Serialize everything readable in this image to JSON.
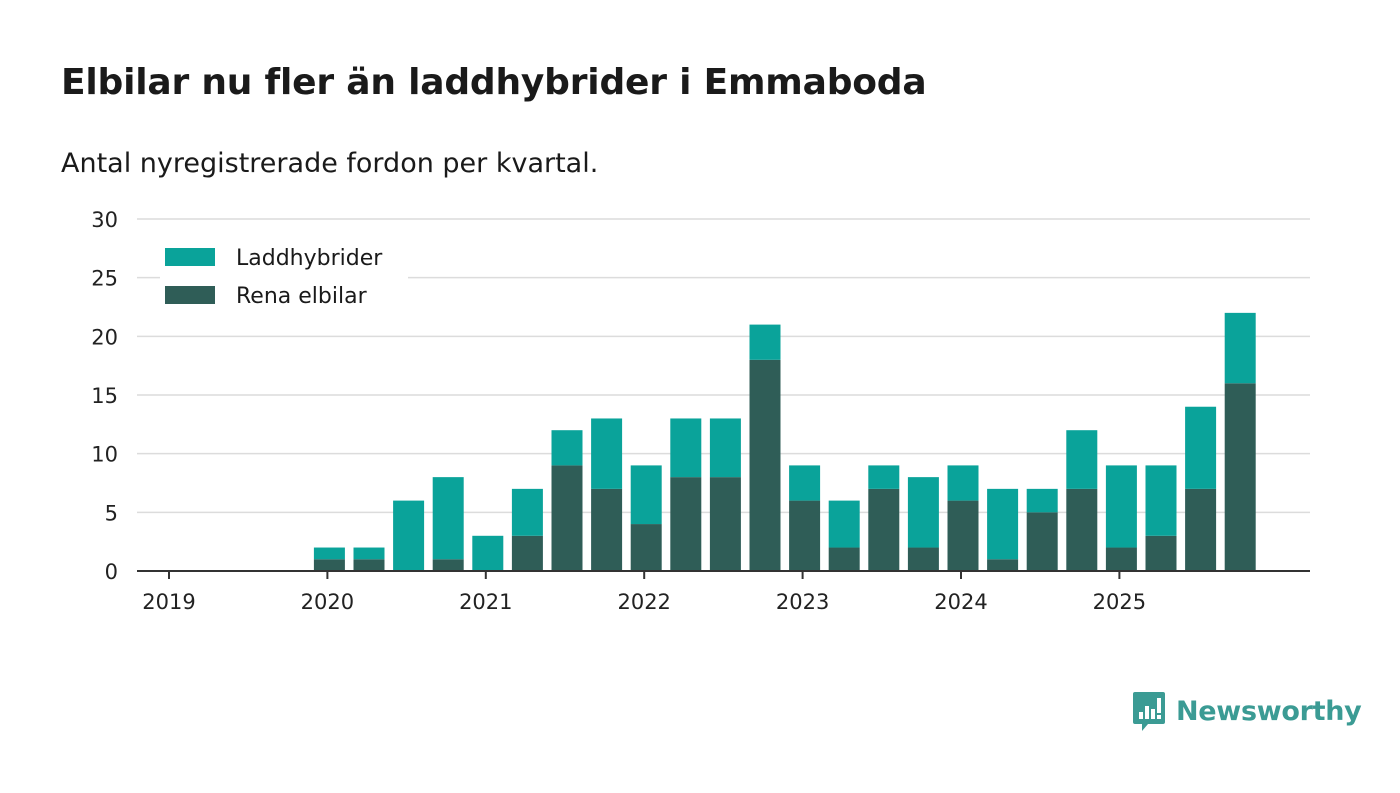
{
  "title": "Elbilar nu fler än laddhybrider i Emmaboda",
  "subtitle": "Antal nyregistrerade fordon per kvartal.",
  "brand": {
    "name": "Newsworthy",
    "color": "#3b9b94",
    "icon": "newsworthy-logo-icon"
  },
  "colors": {
    "laddhybrider": "#0aa39a",
    "rena_elbilar": "#2f5d57",
    "grid": "#dcdcdc",
    "axis": "#333333"
  },
  "chart_data": {
    "type": "bar",
    "stacked": true,
    "title": "Elbilar nu fler än laddhybrider i Emmaboda",
    "subtitle": "Antal nyregistrerade fordon per kvartal.",
    "xlabel": "",
    "ylabel": "",
    "ylim": [
      0,
      30
    ],
    "yticks": [
      0,
      5,
      10,
      15,
      20,
      25,
      30
    ],
    "xticks": [
      "2019",
      "2020",
      "2021",
      "2022",
      "2023",
      "2024",
      "2025"
    ],
    "grid": true,
    "legend_position": "top-left",
    "categories": [
      "2019 Q1",
      "2019 Q2",
      "2019 Q3",
      "2019 Q4",
      "2020 Q1",
      "2020 Q2",
      "2020 Q3",
      "2020 Q4",
      "2021 Q1",
      "2021 Q2",
      "2021 Q3",
      "2021 Q4",
      "2022 Q1",
      "2022 Q2",
      "2022 Q3",
      "2022 Q4",
      "2023 Q1",
      "2023 Q2",
      "2023 Q3",
      "2023 Q4",
      "2024 Q1",
      "2024 Q2",
      "2024 Q3",
      "2024 Q4",
      "2025 Q1",
      "2025 Q2",
      "2025 Q3",
      "2025 Q4"
    ],
    "series": [
      {
        "name": "Rena elbilar",
        "color": "#2f5d57",
        "values": [
          0,
          0,
          0,
          0,
          1,
          1,
          0,
          1,
          0,
          3,
          9,
          7,
          4,
          8,
          8,
          18,
          6,
          2,
          7,
          2,
          6,
          1,
          5,
          7,
          2,
          3,
          7,
          16
        ]
      },
      {
        "name": "Laddhybrider",
        "color": "#0aa39a",
        "values": [
          0,
          0,
          0,
          0,
          1,
          1,
          6,
          7,
          3,
          4,
          3,
          6,
          5,
          5,
          5,
          3,
          3,
          4,
          2,
          6,
          3,
          6,
          2,
          5,
          7,
          6,
          7,
          6
        ]
      }
    ],
    "legend": [
      "Laddhybrider",
      "Rena elbilar"
    ]
  }
}
